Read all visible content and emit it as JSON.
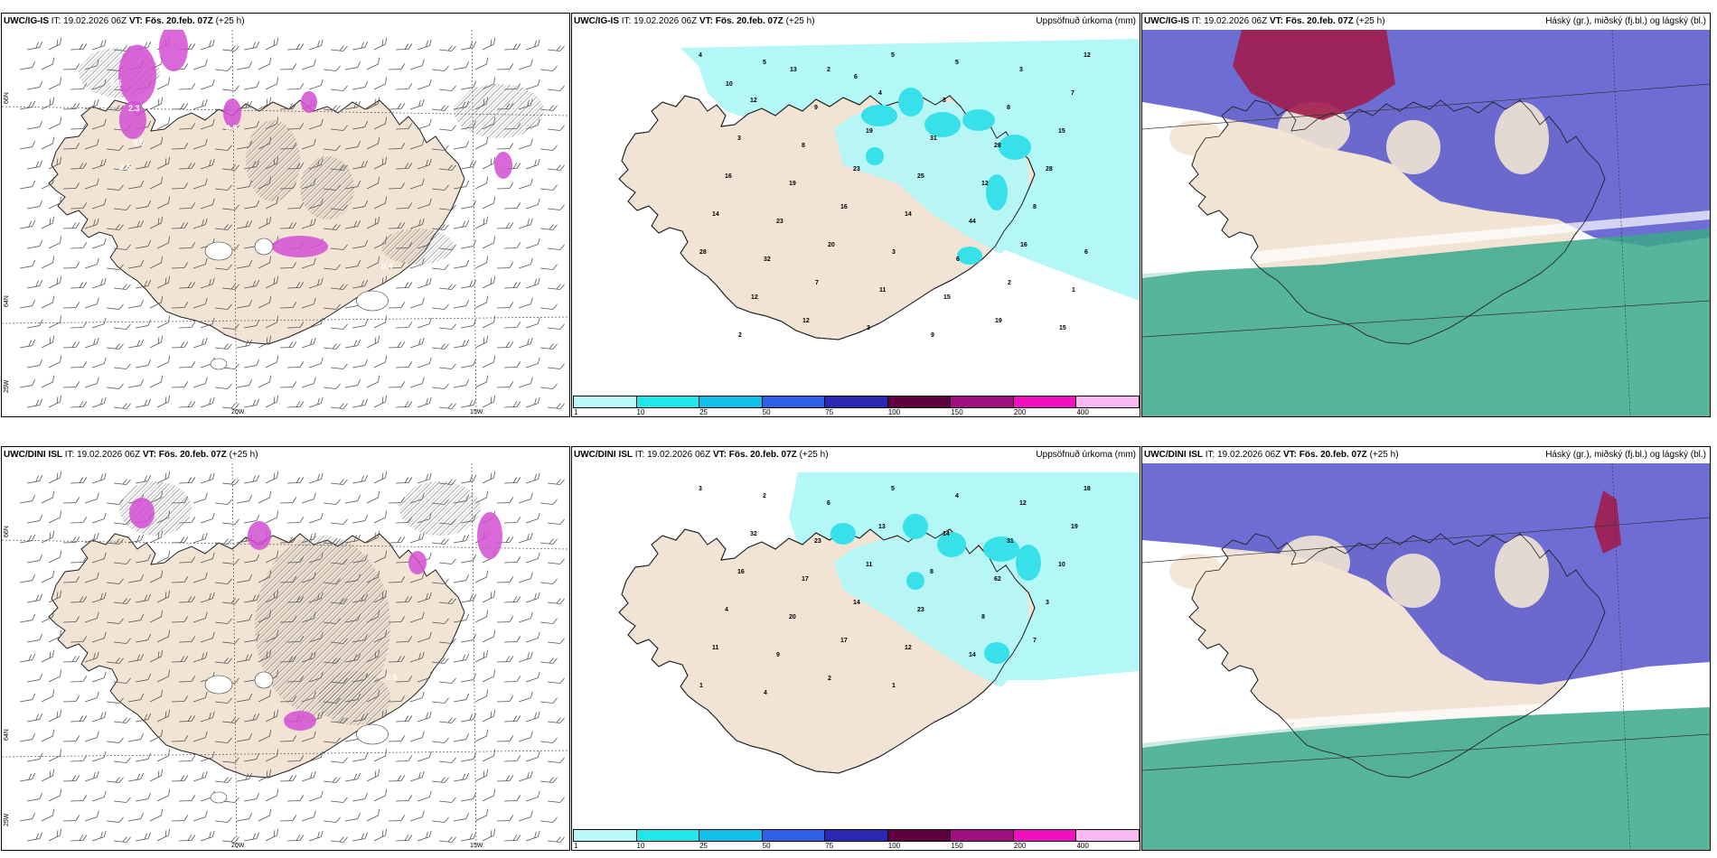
{
  "rows": [
    {
      "model": "UWC/IG-IS",
      "it_label": "IT:",
      "it_value": "19.02.2026 06Z",
      "vt_label": "VT:",
      "vt_value": "Fös. 20.feb. 07Z",
      "lead": "(+25 h)"
    },
    {
      "model": "UWC/DINI ISL",
      "it_label": "IT:",
      "it_value": "19.02.2026 06Z",
      "vt_label": "VT:",
      "vt_value": "Fös. 20.feb. 07Z",
      "lead": "(+25 h)"
    }
  ],
  "precip_title": "Uppsöfnuð úrkoma (mm)",
  "cloud_title": "Háský (gr.), miðský (fj.bl.) og lágský (bl.)",
  "axes": {
    "lat66": "66N",
    "lat64": "64N",
    "lon25": "25W",
    "lon20": "20W",
    "lon15": "15W"
  },
  "colorbar": {
    "ticks": [
      "1",
      "10",
      "25",
      "50",
      "75",
      "100",
      "150",
      "200",
      "400"
    ],
    "colors": [
      "#b8f8f8",
      "#20e8e8",
      "#10c0e8",
      "#3060e8",
      "#2828b0",
      "#600040",
      "#a01080",
      "#f010c0",
      "#f8b8f0"
    ]
  },
  "colors": {
    "land": "#f2e4d4",
    "sea": "#ffffff",
    "precip_light": "#b3f7f7",
    "precip_mid": "#38e0ea",
    "high_cloud": "#a01c4c",
    "mid_cloud": "#5454cc",
    "low_cloud": "#3aa88a",
    "snow": "#d24fd2"
  },
  "top_precip_labels": [
    "4",
    "5",
    "2",
    "5",
    "5",
    "3",
    "12",
    "12",
    "9",
    "4",
    "3",
    "8",
    "7",
    "3",
    "8",
    "19",
    "31",
    "28",
    "15",
    "16",
    "19",
    "23",
    "25",
    "12",
    "28",
    "14",
    "23",
    "16",
    "14",
    "44",
    "8",
    "28",
    "32",
    "20",
    "3",
    "6",
    "16",
    "6",
    "12",
    "7",
    "11",
    "15",
    "2",
    "1",
    "2",
    "12",
    "3",
    "9",
    "19",
    "15",
    "10",
    "13",
    "6"
  ],
  "bottom_precip_labels": [
    "3",
    "2",
    "6",
    "5",
    "4",
    "12",
    "18",
    "32",
    "23",
    "13",
    "14",
    "31",
    "19",
    "16",
    "17",
    "11",
    "8",
    "62",
    "10",
    "4",
    "20",
    "14",
    "23",
    "8",
    "3",
    "11",
    "9",
    "17",
    "12",
    "14",
    "7",
    "1",
    "4",
    "2",
    "1"
  ],
  "snow_labels_top": [
    "2.5",
    "2.3",
    "3.5",
    "2.5",
    "0.5",
    "0.4"
  ],
  "snow_labels_bottom": [
    "0.5",
    "1.5",
    "0.9"
  ]
}
